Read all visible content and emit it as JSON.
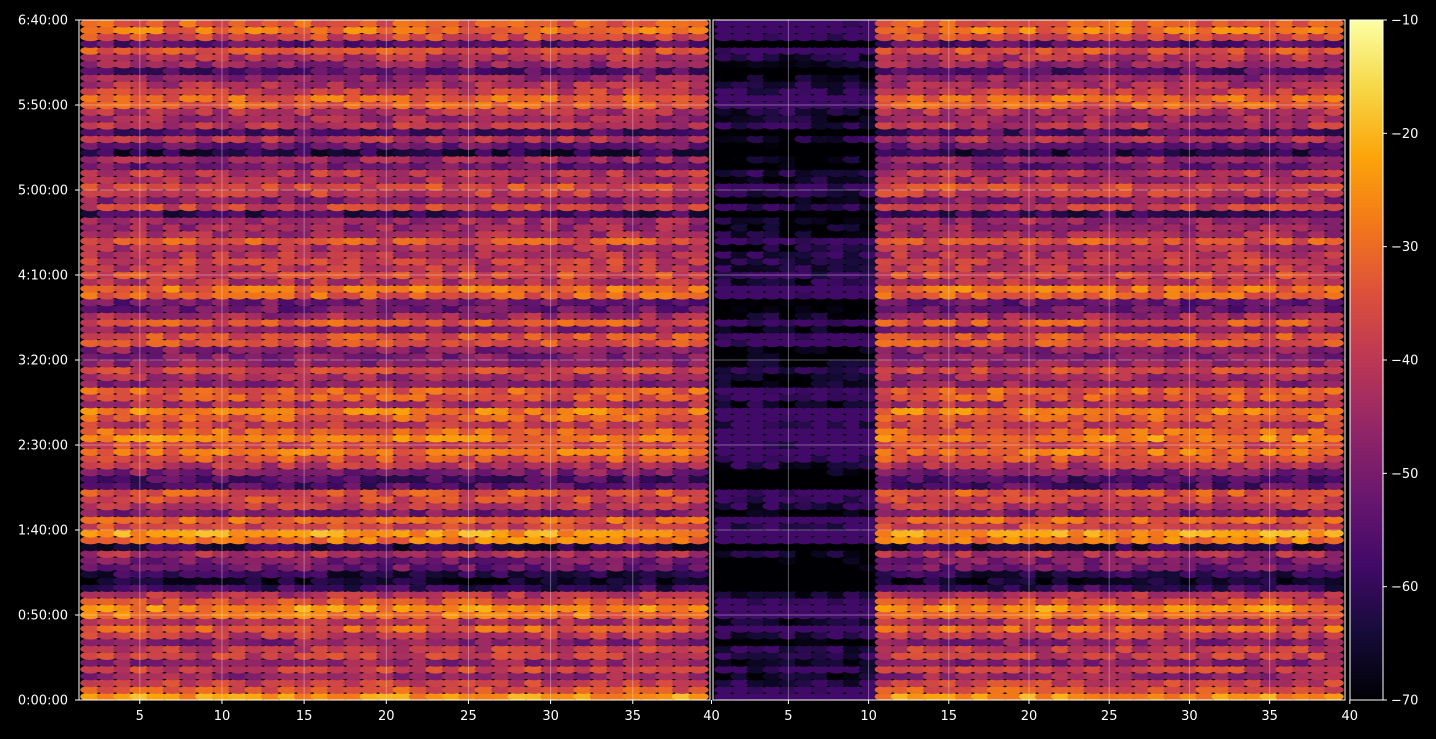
{
  "chart_data": {
    "type": "heatmap",
    "title": "",
    "panels": [
      {
        "name": "",
        "xlim": [
          1.3,
          39.7
        ],
        "x_ticks": [
          5,
          10,
          15,
          20,
          25,
          30,
          35
        ],
        "x_tick_labels": [
          "5",
          "10",
          "15",
          "20",
          "25",
          "30",
          "35"
        ],
        "dead_columns": [],
        "cell_x_step": 1
      },
      {
        "name": "",
        "xlim": [
          0.3,
          39.7
        ],
        "x_ticks": [
          5,
          10,
          15,
          20,
          25,
          30,
          35,
          40
        ],
        "x_tick_labels": [
          "5",
          "10",
          "15",
          "20",
          "25",
          "30",
          "35",
          "40"
        ],
        "dead_columns": [
          [
            0.3,
            10.5
          ]
        ],
        "cell_x_step": 1
      }
    ],
    "boundary_tick_label": "40",
    "y_axis": {
      "unit": "seconds",
      "ylim": [
        0,
        24000
      ],
      "ticks": [
        0,
        3000,
        6000,
        9000,
        12000,
        15000,
        18000,
        21000,
        24000
      ],
      "tick_labels": [
        "0:00:00",
        "0:50:00",
        "1:40:00",
        "2:30:00",
        "3:20:00",
        "4:10:00",
        "5:00:00",
        "5:50:00",
        "6:40:00"
      ]
    },
    "grid": true,
    "colorbar": {
      "colormap": "inferno",
      "vmin": -70,
      "vmax": -10,
      "ticks": [
        -70,
        -60,
        -50,
        -40,
        -30,
        -20,
        -10
      ],
      "tick_labels": [
        "−70",
        "−60",
        "−50",
        "−40",
        "−30",
        "−20",
        "−10"
      ]
    },
    "row_step_seconds": 240,
    "row_profile": [
      {
        "t": 0,
        "v": -22
      },
      {
        "t": 300,
        "v": -28
      },
      {
        "t": 500,
        "v": -45
      },
      {
        "t": 700,
        "v": -32
      },
      {
        "t": 900,
        "v": -52
      },
      {
        "t": 1100,
        "v": -36
      },
      {
        "t": 1300,
        "v": -48
      },
      {
        "t": 1500,
        "v": -40
      },
      {
        "t": 1700,
        "v": -34
      },
      {
        "t": 1900,
        "v": -44
      },
      {
        "t": 2100,
        "v": -50
      },
      {
        "t": 2300,
        "v": -38
      },
      {
        "t": 2500,
        "v": -30
      },
      {
        "t": 2700,
        "v": -46
      },
      {
        "t": 2900,
        "v": -34
      },
      {
        "t": 3100,
        "v": -24
      },
      {
        "t": 3300,
        "v": -26
      },
      {
        "t": 3500,
        "v": -36
      },
      {
        "t": 3700,
        "v": -40
      },
      {
        "t": 3900,
        "v": -58
      },
      {
        "t": 4200,
        "v": -66
      },
      {
        "t": 4500,
        "v": -60
      },
      {
        "t": 4800,
        "v": -46
      },
      {
        "t": 5000,
        "v": -52
      },
      {
        "t": 5200,
        "v": -40
      },
      {
        "t": 5400,
        "v": -62
      },
      {
        "t": 5600,
        "v": -30
      },
      {
        "t": 5800,
        "v": -22
      },
      {
        "t": 6000,
        "v": -26
      },
      {
        "t": 6200,
        "v": -44
      },
      {
        "t": 6400,
        "v": -28
      },
      {
        "t": 6600,
        "v": -50
      },
      {
        "t": 6800,
        "v": -42
      },
      {
        "t": 7000,
        "v": -34
      },
      {
        "t": 7200,
        "v": -40
      },
      {
        "t": 7400,
        "v": -30
      },
      {
        "t": 7600,
        "v": -62
      },
      {
        "t": 7800,
        "v": -56
      },
      {
        "t": 8000,
        "v": -50
      },
      {
        "t": 8200,
        "v": -44
      },
      {
        "t": 8400,
        "v": -38
      },
      {
        "t": 8600,
        "v": -32
      },
      {
        "t": 8800,
        "v": -28
      },
      {
        "t": 9000,
        "v": -36
      },
      {
        "t": 9200,
        "v": -26
      },
      {
        "t": 9400,
        "v": -30
      },
      {
        "t": 9600,
        "v": -34
      },
      {
        "t": 9800,
        "v": -42
      },
      {
        "t": 10000,
        "v": -30
      },
      {
        "t": 10200,
        "v": -28
      },
      {
        "t": 10400,
        "v": -44
      },
      {
        "t": 10600,
        "v": -36
      },
      {
        "t": 10800,
        "v": -30
      },
      {
        "t": 11000,
        "v": -34
      },
      {
        "t": 11200,
        "v": -50
      },
      {
        "t": 11400,
        "v": -44
      },
      {
        "t": 11600,
        "v": -32
      },
      {
        "t": 11800,
        "v": -54
      },
      {
        "t": 12000,
        "v": -36
      },
      {
        "t": 12200,
        "v": -58
      },
      {
        "t": 12400,
        "v": -46
      },
      {
        "t": 12600,
        "v": -34
      },
      {
        "t": 12800,
        "v": -30
      },
      {
        "t": 13000,
        "v": -52
      },
      {
        "t": 13200,
        "v": -40
      },
      {
        "t": 13400,
        "v": -30
      },
      {
        "t": 13600,
        "v": -48
      },
      {
        "t": 13800,
        "v": -52
      },
      {
        "t": 14000,
        "v": -56
      },
      {
        "t": 14200,
        "v": -36
      },
      {
        "t": 14400,
        "v": -26
      },
      {
        "t": 14600,
        "v": -32
      },
      {
        "t": 14800,
        "v": -44
      },
      {
        "t": 15000,
        "v": -36
      },
      {
        "t": 15200,
        "v": -42
      },
      {
        "t": 15400,
        "v": -34
      },
      {
        "t": 15600,
        "v": -46
      },
      {
        "t": 15800,
        "v": -38
      },
      {
        "t": 16000,
        "v": -44
      },
      {
        "t": 16200,
        "v": -34
      },
      {
        "t": 16400,
        "v": -42
      },
      {
        "t": 16600,
        "v": -50
      },
      {
        "t": 16800,
        "v": -38
      },
      {
        "t": 17000,
        "v": -48
      },
      {
        "t": 17200,
        "v": -62
      },
      {
        "t": 17400,
        "v": -38
      },
      {
        "t": 17600,
        "v": -52
      },
      {
        "t": 17800,
        "v": -34
      },
      {
        "t": 18000,
        "v": -46
      },
      {
        "t": 18200,
        "v": -28
      },
      {
        "t": 18400,
        "v": -48
      },
      {
        "t": 18600,
        "v": -40
      },
      {
        "t": 18800,
        "v": -56
      },
      {
        "t": 19000,
        "v": -36
      },
      {
        "t": 19200,
        "v": -58
      },
      {
        "t": 19400,
        "v": -64
      },
      {
        "t": 19600,
        "v": -50
      },
      {
        "t": 19800,
        "v": -42
      },
      {
        "t": 20000,
        "v": -60
      },
      {
        "t": 20200,
        "v": -44
      },
      {
        "t": 20400,
        "v": -36
      },
      {
        "t": 20600,
        "v": -50
      },
      {
        "t": 20800,
        "v": -40
      },
      {
        "t": 21000,
        "v": -32
      },
      {
        "t": 21200,
        "v": -30
      },
      {
        "t": 21400,
        "v": -34
      },
      {
        "t": 21600,
        "v": -46
      },
      {
        "t": 21800,
        "v": -40
      },
      {
        "t": 22000,
        "v": -48
      },
      {
        "t": 22200,
        "v": -56
      },
      {
        "t": 22400,
        "v": -44
      },
      {
        "t": 22600,
        "v": -52
      },
      {
        "t": 22800,
        "v": -26
      },
      {
        "t": 23000,
        "v": -40
      },
      {
        "t": 23200,
        "v": -58
      },
      {
        "t": 23400,
        "v": -36
      },
      {
        "t": 23600,
        "v": -28
      },
      {
        "t": 23800,
        "v": -34
      },
      {
        "t": 24000,
        "v": -30
      }
    ]
  }
}
